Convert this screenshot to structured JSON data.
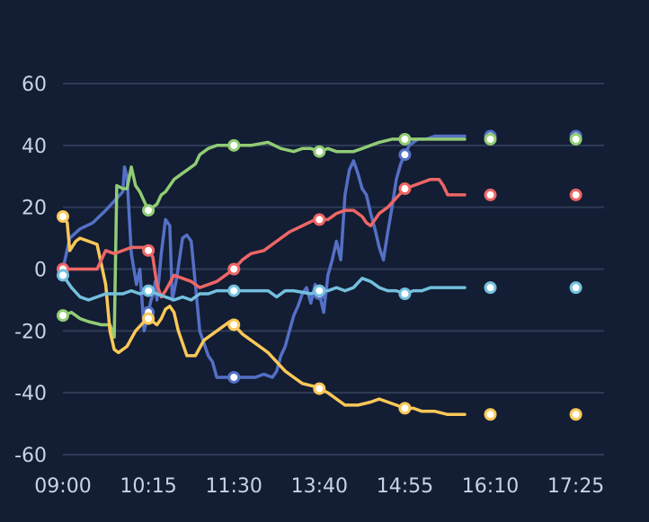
{
  "chart_data": {
    "type": "line",
    "title": "",
    "xlabel": "",
    "ylabel": "",
    "x_tick_labels": [
      "09:00",
      "10:15",
      "11:30",
      "13:40",
      "14:55",
      "16:10",
      "17:25"
    ],
    "ylim": [
      -60,
      60
    ],
    "y_ticks": [
      60,
      40,
      20,
      0,
      -20,
      -40,
      -60
    ],
    "grid": "horizontal",
    "legend": "none",
    "colors": {
      "background": "#131d33",
      "grid": "#2f3c57",
      "axis_text": "#c9d3e6"
    },
    "series": [
      {
        "color": "#5470c6",
        "points": [
          [
            0,
            0
          ],
          [
            0.08,
            10
          ],
          [
            0.2,
            13
          ],
          [
            0.35,
            15
          ],
          [
            0.5,
            19
          ],
          [
            0.6,
            22
          ],
          [
            0.7,
            25
          ],
          [
            0.72,
            33
          ],
          [
            0.75,
            30
          ],
          [
            0.8,
            5
          ],
          [
            0.86,
            -5
          ],
          [
            0.9,
            0
          ],
          [
            0.95,
            -20
          ],
          [
            1.0,
            -14
          ],
          [
            1.03,
            -10
          ],
          [
            1.06,
            -8
          ],
          [
            1.08,
            -4
          ],
          [
            1.1,
            -10
          ],
          [
            1.15,
            5
          ],
          [
            1.2,
            16
          ],
          [
            1.25,
            14
          ],
          [
            1.28,
            -10
          ],
          [
            1.33,
            -3
          ],
          [
            1.4,
            10
          ],
          [
            1.45,
            11
          ],
          [
            1.5,
            9
          ],
          [
            1.55,
            -5
          ],
          [
            1.6,
            -20
          ],
          [
            1.65,
            -24
          ],
          [
            1.7,
            -28
          ],
          [
            1.75,
            -30
          ],
          [
            1.8,
            -35
          ],
          [
            1.85,
            -35
          ],
          [
            1.95,
            -35
          ],
          [
            2.05,
            -35
          ],
          [
            2.15,
            -35
          ],
          [
            2.25,
            -35
          ],
          [
            2.35,
            -34
          ],
          [
            2.45,
            -35
          ],
          [
            2.5,
            -33
          ],
          [
            2.55,
            -28
          ],
          [
            2.6,
            -25
          ],
          [
            2.65,
            -20
          ],
          [
            2.7,
            -15
          ],
          [
            2.75,
            -12
          ],
          [
            2.8,
            -8
          ],
          [
            2.85,
            -6
          ],
          [
            2.9,
            -11
          ],
          [
            2.95,
            -5
          ],
          [
            3.0,
            -8
          ],
          [
            3.05,
            -14
          ],
          [
            3.1,
            -2
          ],
          [
            3.15,
            3
          ],
          [
            3.2,
            9
          ],
          [
            3.25,
            3
          ],
          [
            3.3,
            24
          ],
          [
            3.35,
            32
          ],
          [
            3.4,
            35
          ],
          [
            3.45,
            31
          ],
          [
            3.5,
            26
          ],
          [
            3.55,
            24
          ],
          [
            3.6,
            18
          ],
          [
            3.65,
            13
          ],
          [
            3.7,
            7
          ],
          [
            3.75,
            3
          ],
          [
            3.8,
            12
          ],
          [
            3.85,
            20
          ],
          [
            3.9,
            29
          ],
          [
            3.95,
            34
          ],
          [
            4.0,
            37
          ],
          [
            4.05,
            40
          ],
          [
            4.1,
            41
          ],
          [
            4.15,
            42
          ],
          [
            4.25,
            42
          ],
          [
            4.35,
            43
          ],
          [
            4.5,
            43
          ],
          [
            4.6,
            43
          ],
          [
            4.7,
            43
          ]
        ]
      },
      {
        "color": "#91cc75",
        "points": [
          [
            0,
            -15
          ],
          [
            0.1,
            -14
          ],
          [
            0.2,
            -16
          ],
          [
            0.3,
            -17
          ],
          [
            0.45,
            -18
          ],
          [
            0.55,
            -18
          ],
          [
            0.6,
            -22
          ],
          [
            0.63,
            27
          ],
          [
            0.7,
            26
          ],
          [
            0.75,
            26
          ],
          [
            0.8,
            33
          ],
          [
            0.85,
            27
          ],
          [
            0.9,
            25
          ],
          [
            0.95,
            22
          ],
          [
            1.0,
            19
          ],
          [
            1.05,
            20
          ],
          [
            1.1,
            21
          ],
          [
            1.15,
            24
          ],
          [
            1.2,
            25
          ],
          [
            1.3,
            29
          ],
          [
            1.4,
            31
          ],
          [
            1.5,
            33
          ],
          [
            1.55,
            34
          ],
          [
            1.6,
            37
          ],
          [
            1.7,
            39
          ],
          [
            1.8,
            40
          ],
          [
            1.9,
            40
          ],
          [
            2.0,
            40
          ],
          [
            2.2,
            40
          ],
          [
            2.4,
            41
          ],
          [
            2.55,
            39
          ],
          [
            2.7,
            38
          ],
          [
            2.8,
            39
          ],
          [
            2.9,
            39
          ],
          [
            3.0,
            38
          ],
          [
            3.1,
            39
          ],
          [
            3.2,
            38
          ],
          [
            3.3,
            38
          ],
          [
            3.4,
            38
          ],
          [
            3.5,
            39
          ],
          [
            3.6,
            40
          ],
          [
            3.7,
            41
          ],
          [
            3.85,
            42
          ],
          [
            4.0,
            42
          ],
          [
            4.2,
            42
          ],
          [
            4.4,
            42
          ],
          [
            4.6,
            42
          ],
          [
            4.7,
            42
          ]
        ]
      },
      {
        "color": "#fac858",
        "points": [
          [
            0,
            17
          ],
          [
            0.05,
            15
          ],
          [
            0.08,
            6
          ],
          [
            0.15,
            9
          ],
          [
            0.2,
            10
          ],
          [
            0.3,
            9
          ],
          [
            0.4,
            8
          ],
          [
            0.5,
            -5
          ],
          [
            0.55,
            -20
          ],
          [
            0.6,
            -26
          ],
          [
            0.65,
            -27
          ],
          [
            0.75,
            -25
          ],
          [
            0.85,
            -20
          ],
          [
            0.95,
            -17
          ],
          [
            1.0,
            -16
          ],
          [
            1.05,
            -17
          ],
          [
            1.1,
            -18
          ],
          [
            1.15,
            -16
          ],
          [
            1.2,
            -13
          ],
          [
            1.25,
            -12
          ],
          [
            1.3,
            -14
          ],
          [
            1.35,
            -20
          ],
          [
            1.45,
            -28
          ],
          [
            1.55,
            -28
          ],
          [
            1.65,
            -23
          ],
          [
            1.75,
            -21
          ],
          [
            1.85,
            -19
          ],
          [
            1.95,
            -17
          ],
          [
            2.0,
            -18
          ],
          [
            2.1,
            -21
          ],
          [
            2.2,
            -23
          ],
          [
            2.3,
            -25
          ],
          [
            2.4,
            -27
          ],
          [
            2.5,
            -30
          ],
          [
            2.6,
            -33
          ],
          [
            2.7,
            -35
          ],
          [
            2.8,
            -37
          ],
          [
            2.95,
            -38
          ],
          [
            3.1,
            -40
          ],
          [
            3.2,
            -42
          ],
          [
            3.3,
            -44
          ],
          [
            3.45,
            -44
          ],
          [
            3.6,
            -43
          ],
          [
            3.7,
            -42
          ],
          [
            3.8,
            -43
          ],
          [
            3.9,
            -44
          ],
          [
            4.0,
            -45
          ],
          [
            4.1,
            -45
          ],
          [
            4.2,
            -46
          ],
          [
            4.35,
            -46
          ],
          [
            4.5,
            -47
          ],
          [
            4.7,
            -47
          ]
        ]
      },
      {
        "color": "#ee6666",
        "points": [
          [
            0,
            0
          ],
          [
            0.1,
            0
          ],
          [
            0.3,
            0
          ],
          [
            0.4,
            0
          ],
          [
            0.5,
            6
          ],
          [
            0.6,
            5
          ],
          [
            0.7,
            6
          ],
          [
            0.8,
            7
          ],
          [
            0.9,
            7
          ],
          [
            0.95,
            7
          ],
          [
            1.0,
            6
          ],
          [
            1.05,
            4
          ],
          [
            1.1,
            -5
          ],
          [
            1.15,
            -9
          ],
          [
            1.2,
            -7
          ],
          [
            1.3,
            -2
          ],
          [
            1.4,
            -3
          ],
          [
            1.5,
            -4
          ],
          [
            1.6,
            -6
          ],
          [
            1.7,
            -5
          ],
          [
            1.8,
            -4
          ],
          [
            1.9,
            -2
          ],
          [
            2.0,
            0
          ],
          [
            2.1,
            3
          ],
          [
            2.2,
            5
          ],
          [
            2.35,
            6
          ],
          [
            2.5,
            9
          ],
          [
            2.65,
            12
          ],
          [
            2.8,
            14
          ],
          [
            2.95,
            16
          ],
          [
            3.1,
            16
          ],
          [
            3.2,
            18
          ],
          [
            3.3,
            19
          ],
          [
            3.4,
            19
          ],
          [
            3.5,
            17
          ],
          [
            3.55,
            15
          ],
          [
            3.6,
            14
          ],
          [
            3.7,
            18
          ],
          [
            3.8,
            20
          ],
          [
            3.9,
            23
          ],
          [
            4.0,
            26
          ],
          [
            4.1,
            27
          ],
          [
            4.2,
            28
          ],
          [
            4.3,
            29
          ],
          [
            4.4,
            29
          ],
          [
            4.45,
            27
          ],
          [
            4.5,
            24
          ],
          [
            4.6,
            24
          ],
          [
            4.7,
            24
          ]
        ]
      },
      {
        "color": "#73c0de",
        "points": [
          [
            0,
            -2
          ],
          [
            0.05,
            -4
          ],
          [
            0.1,
            -6
          ],
          [
            0.2,
            -9
          ],
          [
            0.3,
            -10
          ],
          [
            0.4,
            -9
          ],
          [
            0.5,
            -8
          ],
          [
            0.6,
            -8
          ],
          [
            0.7,
            -8
          ],
          [
            0.8,
            -7
          ],
          [
            0.9,
            -8
          ],
          [
            1.0,
            -7
          ],
          [
            1.1,
            -8
          ],
          [
            1.2,
            -9
          ],
          [
            1.3,
            -10
          ],
          [
            1.4,
            -9
          ],
          [
            1.5,
            -10
          ],
          [
            1.6,
            -8
          ],
          [
            1.7,
            -8
          ],
          [
            1.8,
            -7
          ],
          [
            2.0,
            -7
          ],
          [
            2.2,
            -7
          ],
          [
            2.4,
            -7
          ],
          [
            2.5,
            -9
          ],
          [
            2.6,
            -7
          ],
          [
            2.7,
            -7
          ],
          [
            2.9,
            -8
          ],
          [
            3.0,
            -7
          ],
          [
            3.1,
            -7
          ],
          [
            3.2,
            -6
          ],
          [
            3.3,
            -7
          ],
          [
            3.4,
            -6
          ],
          [
            3.5,
            -3
          ],
          [
            3.6,
            -4
          ],
          [
            3.7,
            -6
          ],
          [
            3.8,
            -7
          ],
          [
            3.9,
            -7
          ],
          [
            4.0,
            -8
          ],
          [
            4.1,
            -7
          ],
          [
            4.2,
            -7
          ],
          [
            4.3,
            -6
          ],
          [
            4.5,
            -6
          ],
          [
            4.7,
            -6
          ]
        ]
      }
    ],
    "symbol_positions": [
      0,
      1,
      2,
      3,
      4,
      5,
      6
    ]
  }
}
